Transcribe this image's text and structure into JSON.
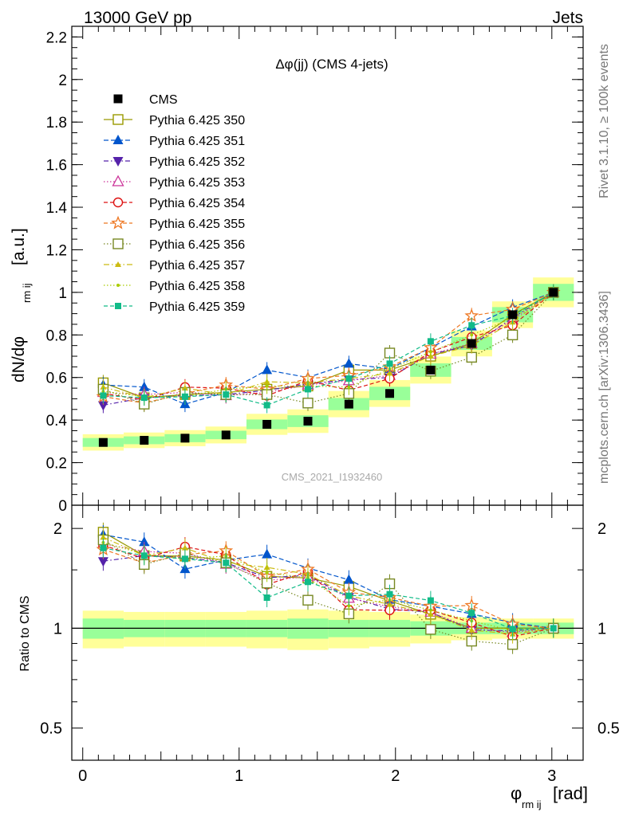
{
  "header": {
    "left": "13000 GeV pp",
    "right": "Jets"
  },
  "side_labels": {
    "rivet": "Rivet 3.1.10, ≥ 100k events",
    "mcplots": "mcplots.cern.ch [arXiv:1306.3436]"
  },
  "watermark": "CMS_2021_I1932460",
  "chart_data": {
    "type": "scatter",
    "title": "Δφ(jj) (CMS 4-jets)",
    "ylabel_main": "dN/dφ",
    "ylabel_sub": "rm ij",
    "ylabel_units": "[a.u.]",
    "xlabel_main": "φ",
    "xlabel_sub": "rm ij",
    "xlabel_units": "[rad]",
    "ratio_ylabel": "Ratio to CMS",
    "xlim": [
      -0.07,
      3.2
    ],
    "ylim": [
      0,
      2.25
    ],
    "ratio_ylim": [
      0.4,
      2.35
    ],
    "ratio_log": true,
    "x_ticks": [
      "0",
      "1",
      "2",
      "3"
    ],
    "y_ticks": [
      "0",
      "0.2",
      "0.4",
      "0.6",
      "0.8",
      "1",
      "1.2",
      "1.4",
      "1.6",
      "1.8",
      "2",
      "2.2"
    ],
    "ratio_ticks": [
      "0.5",
      "1",
      "2"
    ],
    "legend_position": "top-left",
    "x": [
      0.131,
      0.393,
      0.654,
      0.916,
      1.178,
      1.44,
      1.702,
      1.963,
      2.225,
      2.487,
      2.749,
      3.01
    ],
    "data": {
      "name": "CMS",
      "values": [
        0.295,
        0.305,
        0.315,
        0.33,
        0.38,
        0.395,
        0.475,
        0.525,
        0.635,
        0.76,
        0.895,
        1.0
      ]
    },
    "band_inner": [
      0.07,
      0.06,
      0.06,
      0.06,
      0.06,
      0.07,
      0.06,
      0.06,
      0.05,
      0.04,
      0.04,
      0.04
    ],
    "band_outer": [
      0.13,
      0.12,
      0.12,
      0.12,
      0.13,
      0.14,
      0.13,
      0.12,
      0.1,
      0.08,
      0.07,
      0.07
    ],
    "series": [
      {
        "name": "Pythia 6.425 350",
        "color": "#999900",
        "marker": "square-open",
        "dash": "",
        "values": [
          0.575,
          0.505,
          0.52,
          0.53,
          0.545,
          0.56,
          0.635,
          0.635,
          0.7,
          0.76,
          0.895,
          1.0
        ]
      },
      {
        "name": "Pythia 6.425 351",
        "color": "#0055cc",
        "marker": "triangle-up",
        "dash": "6,3",
        "values": [
          0.565,
          0.555,
          0.475,
          0.53,
          0.635,
          0.6,
          0.665,
          0.64,
          0.74,
          0.84,
          0.93,
          1.0
        ]
      },
      {
        "name": "Pythia 6.425 352",
        "color": "#5522aa",
        "marker": "triangle-down",
        "dash": "6,3,1.5,3",
        "values": [
          0.47,
          0.505,
          0.515,
          0.52,
          0.54,
          0.57,
          0.59,
          0.6,
          0.71,
          0.75,
          0.88,
          1.0
        ]
      },
      {
        "name": "Pythia 6.425 353",
        "color": "#cc3399",
        "marker": "triangle-open",
        "dash": "1.5,2.5",
        "values": [
          0.53,
          0.52,
          0.53,
          0.515,
          0.53,
          0.565,
          0.585,
          0.61,
          0.71,
          0.76,
          0.87,
          1.0
        ]
      },
      {
        "name": "Pythia 6.425 354",
        "color": "#dd1111",
        "marker": "circle-open",
        "dash": "5,3",
        "values": [
          0.525,
          0.495,
          0.555,
          0.55,
          0.515,
          0.585,
          0.54,
          0.595,
          0.72,
          0.79,
          0.845,
          1.0
        ]
      },
      {
        "name": "Pythia 6.425 355",
        "color": "#ee7722",
        "marker": "star-open",
        "dash": "5,3",
        "values": [
          0.51,
          0.48,
          0.525,
          0.565,
          0.545,
          0.595,
          0.61,
          0.65,
          0.74,
          0.89,
          0.92,
          1.0
        ]
      },
      {
        "name": "Pythia 6.425 356",
        "color": "#778822",
        "marker": "square-open",
        "dash": "1.5,2.5",
        "values": [
          0.545,
          0.475,
          0.53,
          0.52,
          0.52,
          0.48,
          0.525,
          0.715,
          0.63,
          0.695,
          0.8,
          1.0
        ]
      },
      {
        "name": "Pythia 6.425 357",
        "color": "#ccbb11",
        "marker": "tri-small",
        "dash": "7,3,1.5,3",
        "values": [
          0.555,
          0.505,
          0.55,
          0.52,
          0.58,
          0.575,
          0.595,
          0.62,
          0.7,
          0.75,
          0.86,
          1.0
        ]
      },
      {
        "name": "Pythia 6.425 358",
        "color": "#aacc00",
        "marker": "dot",
        "dash": "1.5,2.5",
        "values": [
          0.535,
          0.51,
          0.51,
          0.545,
          0.56,
          0.56,
          0.555,
          0.64,
          0.72,
          0.8,
          0.88,
          1.0
        ]
      },
      {
        "name": "Pythia 6.425 359",
        "color": "#11bb88",
        "marker": "square-small",
        "dash": "5,3",
        "values": [
          0.515,
          0.505,
          0.51,
          0.52,
          0.47,
          0.545,
          0.595,
          0.665,
          0.77,
          0.845,
          0.89,
          1.0
        ]
      }
    ]
  }
}
